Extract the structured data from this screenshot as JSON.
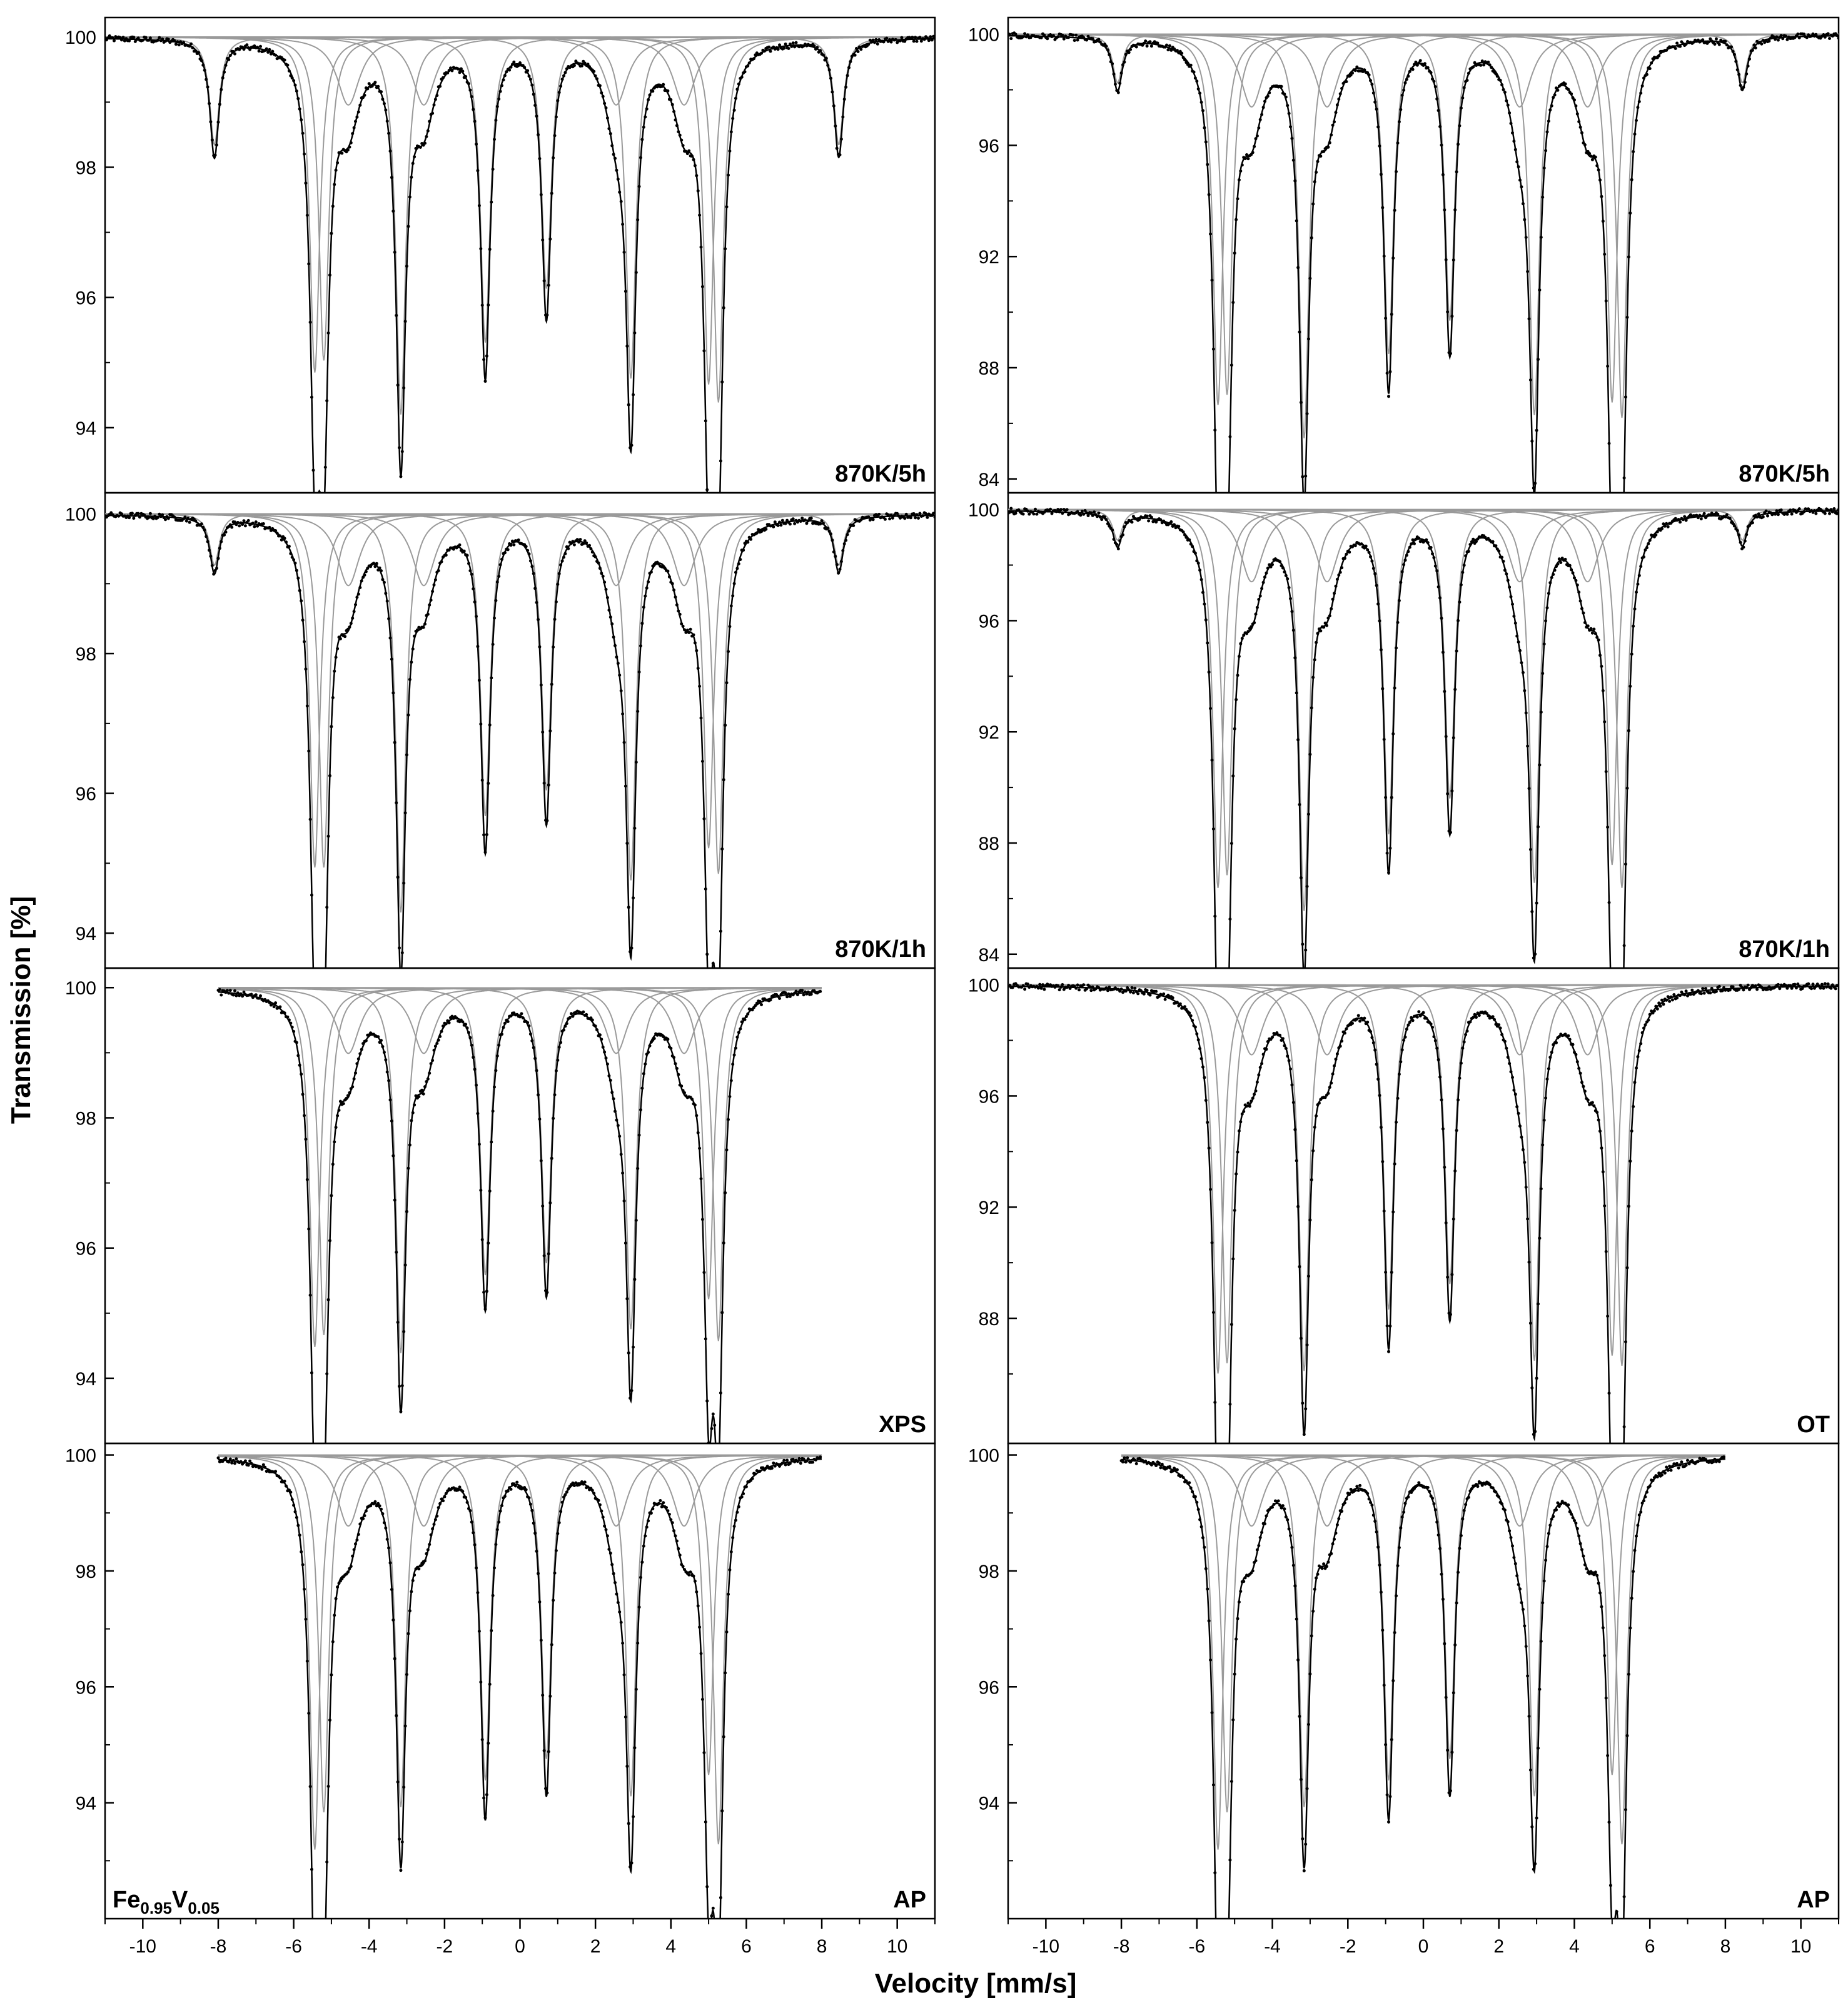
{
  "figure": {
    "ylabel": "Transmission [%]",
    "xlabel": "Velocity [mm/s]"
  },
  "chart_data": [
    {
      "type": "scatter",
      "title": "",
      "xlabel": "Velocity [mm/s]",
      "ylabel": "Transmission [%]",
      "xlim": [
        -11,
        11
      ],
      "ylim": [
        93,
        100.3
      ],
      "xticks": [
        -10,
        -8,
        -6,
        -4,
        -2,
        0,
        2,
        4,
        6,
        8,
        10
      ],
      "yticks": [
        94,
        96,
        98,
        100
      ],
      "label": "870K/5h",
      "velocity_range": [
        -11,
        11
      ],
      "central_lines": [
        -5.44,
        -5.2,
        -3.16,
        -0.92,
        0.7,
        2.94,
        5.0,
        5.26
      ],
      "line_min_transmission": [
        94.4,
        94.6,
        93.7,
        94.9,
        95.8,
        94.3,
        94.2,
        93.9
      ],
      "outer_lines": [
        -8.1,
        8.45
      ],
      "outer_min_transmission": [
        98.2,
        98.2
      ],
      "grid": false
    },
    {
      "type": "scatter",
      "title": "",
      "xlim": [
        -11,
        11
      ],
      "ylim": [
        83.5,
        100.6
      ],
      "xticks": [
        -10,
        -8,
        -6,
        -4,
        -2,
        0,
        2,
        4,
        6,
        8,
        10
      ],
      "yticks": [
        84,
        88,
        92,
        96,
        100
      ],
      "label": "870K/5h",
      "velocity_range": [
        -11,
        11
      ],
      "central_lines": [
        -5.44,
        -5.2,
        -3.16,
        -0.92,
        0.7,
        2.94,
        5.0,
        5.26
      ],
      "line_min_transmission": [
        85.5,
        85.9,
        84.2,
        87.5,
        88.8,
        85.1,
        85.6,
        85.0
      ],
      "outer_lines": [
        -8.1,
        8.45
      ],
      "outer_min_transmission": [
        98.1,
        98.1
      ],
      "grid": false
    },
    {
      "type": "scatter",
      "title": "",
      "xlim": [
        -11,
        11
      ],
      "ylim": [
        93.5,
        100.3
      ],
      "xticks": [
        -10,
        -8,
        -6,
        -4,
        -2,
        0,
        2,
        4,
        6,
        8,
        10
      ],
      "yticks": [
        94,
        96,
        98,
        100
      ],
      "label": "870K/1h",
      "velocity_range": [
        -11,
        11
      ],
      "central_lines": [
        -5.44,
        -5.2,
        -3.16,
        -0.92,
        0.7,
        2.94,
        5.0,
        5.26
      ],
      "line_min_transmission": [
        94.5,
        94.5,
        93.8,
        95.3,
        95.7,
        94.3,
        94.8,
        94.4
      ],
      "outer_lines": [
        -8.1,
        8.45
      ],
      "outer_min_transmission": [
        99.2,
        99.2
      ],
      "grid": false
    },
    {
      "type": "scatter",
      "title": "",
      "xlim": [
        -11,
        11
      ],
      "ylim": [
        83.5,
        100.6
      ],
      "xticks": [
        -10,
        -8,
        -6,
        -4,
        -2,
        0,
        2,
        4,
        6,
        8,
        10
      ],
      "yticks": [
        84,
        88,
        92,
        96,
        100
      ],
      "label": "870K/1h",
      "velocity_range": [
        -11,
        11
      ],
      "central_lines": [
        -5.44,
        -5.2,
        -3.16,
        -0.92,
        0.7,
        2.94,
        5.0,
        5.26
      ],
      "line_min_transmission": [
        85.2,
        85.7,
        84.3,
        87.3,
        88.7,
        85.4,
        86.1,
        85.2
      ],
      "outer_lines": [
        -8.1,
        8.45
      ],
      "outer_min_transmission": [
        98.8,
        98.8
      ],
      "grid": false
    },
    {
      "type": "scatter",
      "title": "",
      "xlim": [
        -11,
        11
      ],
      "ylim": [
        93,
        100.3
      ],
      "xticks": [
        -10,
        -8,
        -6,
        -4,
        -2,
        0,
        2,
        4,
        6,
        8,
        10
      ],
      "yticks": [
        94,
        96,
        98,
        100
      ],
      "label": "XPS",
      "velocity_range": [
        -8,
        8
      ],
      "central_lines": [
        -5.44,
        -5.2,
        -3.16,
        -0.92,
        0.7,
        2.94,
        5.0,
        5.26
      ],
      "line_min_transmission": [
        94.0,
        94.2,
        93.9,
        95.2,
        95.4,
        94.3,
        94.8,
        94.1
      ],
      "outer_lines": [],
      "outer_min_transmission": [],
      "grid": false
    },
    {
      "type": "scatter",
      "title": "",
      "xlim": [
        -11,
        11
      ],
      "ylim": [
        83.5,
        100.6
      ],
      "xticks": [
        -10,
        -8,
        -6,
        -4,
        -2,
        0,
        2,
        4,
        6,
        8,
        10
      ],
      "yticks": [
        88,
        92,
        96,
        100
      ],
      "label": "OT",
      "velocity_range": [
        -11,
        11
      ],
      "central_lines": [
        -5.44,
        -5.2,
        -3.16,
        -0.92,
        0.7,
        2.94,
        5.0,
        5.26
      ],
      "line_min_transmission": [
        84.8,
        85.2,
        84.9,
        87.3,
        88.3,
        85.3,
        85.5,
        85.1
      ],
      "outer_lines": [],
      "outer_min_transmission": [],
      "grid": false
    },
    {
      "type": "scatter",
      "title": "",
      "xlim": [
        -11,
        11
      ],
      "ylim": [
        92.0,
        100.2
      ],
      "xticks": [
        -10,
        -8,
        -6,
        -4,
        -2,
        0,
        2,
        4,
        6,
        8,
        10
      ],
      "yticks": [
        94,
        96,
        98,
        100
      ],
      "label": "AP",
      "sample": {
        "prefix": "Fe",
        "prefix_sub": "0.95",
        "middle": "V",
        "middle_sub": "0.05"
      },
      "velocity_range": [
        -8,
        8
      ],
      "central_lines": [
        -5.44,
        -5.2,
        -3.16,
        -0.92,
        0.7,
        2.94,
        5.0,
        5.26
      ],
      "line_min_transmission": [
        92.6,
        93.3,
        93.4,
        93.9,
        94.3,
        93.6,
        94.0,
        92.7
      ],
      "outer_lines": [],
      "outer_min_transmission": [],
      "grid": false
    },
    {
      "type": "scatter",
      "title": "",
      "xlim": [
        -11,
        11
      ],
      "ylim": [
        92.0,
        100.2
      ],
      "xticks": [
        -10,
        -8,
        -6,
        -4,
        -2,
        0,
        2,
        4,
        6,
        8,
        10
      ],
      "yticks": [
        94,
        96,
        98,
        100
      ],
      "label": "AP",
      "velocity_range": [
        -8,
        8
      ],
      "central_lines": [
        -5.44,
        -5.2,
        -3.16,
        -0.92,
        0.7,
        2.94,
        5.0,
        5.26
      ],
      "line_min_transmission": [
        92.6,
        93.3,
        93.4,
        93.9,
        94.3,
        93.6,
        94.0,
        92.7
      ],
      "outer_lines": [],
      "outer_min_transmission": [],
      "grid": false
    }
  ]
}
